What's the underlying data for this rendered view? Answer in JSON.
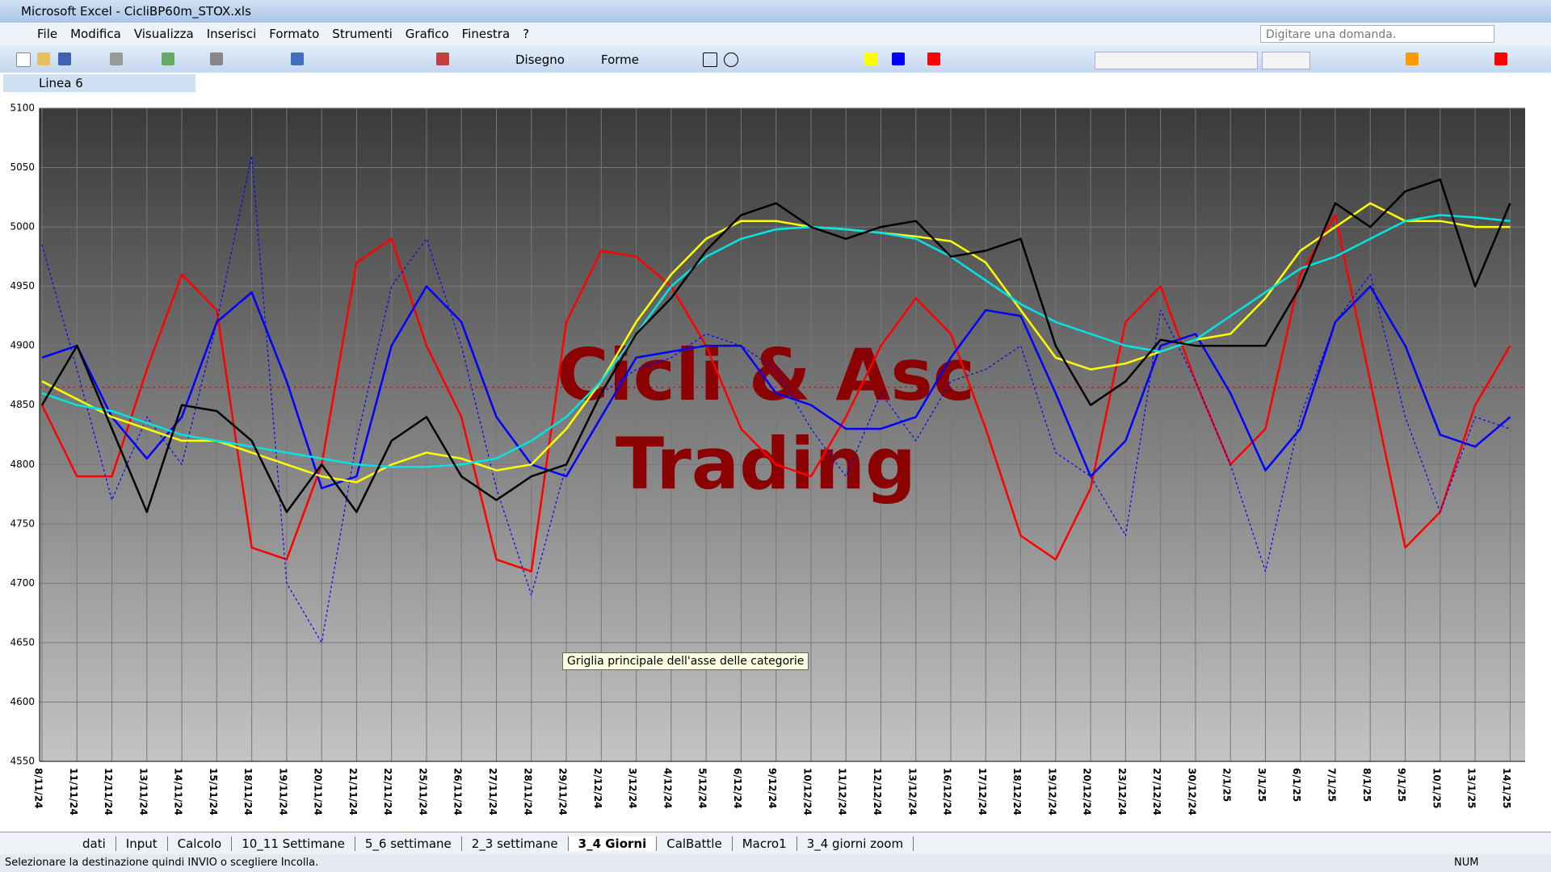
{
  "window": {
    "title": "Microsoft Excel - CicliBP60m_STOX.xls"
  },
  "menu": [
    "File",
    "Modifica",
    "Visualizza",
    "Inserisci",
    "Formato",
    "Strumenti",
    "Grafico",
    "Finestra",
    "?"
  ],
  "help_box": "Digitare una domanda.",
  "toolbar": {
    "drawing": "Disegno",
    "shapes": "Forme"
  },
  "name_box": "Linea 6",
  "tooltip": "Griglia principale dell'asse delle categorie",
  "sheet_tabs": [
    "dati",
    "Input",
    "Calcolo",
    "10_11 Settimane",
    "5_6 settimane",
    "2_3 settimane",
    "3_4 Giorni",
    "CalBattle",
    "Macro1",
    "3_4 giorni zoom"
  ],
  "active_tab": 6,
  "status_bar": {
    "message": "Selezionare la destinazione quindi INVIO o scegliere Incolla.",
    "num": "NUM"
  },
  "chart_data": {
    "type": "line",
    "annotations": [
      "Cicli & Asc",
      "Trading"
    ],
    "categories": [
      "8/11/24",
      "11/11/24",
      "12/11/24",
      "13/11/24",
      "14/11/24",
      "15/11/24",
      "18/11/24",
      "19/11/24",
      "20/11/24",
      "21/11/24",
      "22/11/24",
      "25/11/24",
      "26/11/24",
      "27/11/24",
      "28/11/24",
      "29/11/24",
      "2/12/24",
      "3/12/24",
      "4/12/24",
      "5/12/24",
      "6/12/24",
      "9/12/24",
      "10/12/24",
      "11/12/24",
      "12/12/24",
      "13/12/24",
      "16/12/24",
      "17/12/24",
      "18/12/24",
      "19/12/24",
      "20/12/24",
      "23/12/24",
      "27/12/24",
      "30/12/24",
      "2/1/25",
      "3/1/25",
      "6/1/25",
      "7/1/25",
      "8/1/25",
      "9/1/25",
      "10/1/25",
      "13/1/25",
      "14/1/25"
    ],
    "series": [
      {
        "color": "#ff0000",
        "values": [
          4850,
          4790,
          4790,
          4880,
          4960,
          4930,
          4730,
          4720,
          4800,
          4970,
          4990,
          4900,
          4840,
          4720,
          4710,
          4920,
          4980,
          4975,
          4950,
          4900,
          4830,
          4800,
          4790,
          4840,
          4900,
          4940,
          4910,
          4830,
          4740,
          4720,
          4780,
          4920,
          4950,
          4870,
          4800,
          4830,
          4960,
          5010,
          4870,
          4730,
          4760,
          4850,
          4900
        ]
      },
      {
        "color": "#0000ff",
        "dashed": true,
        "values": [
          4985,
          4880,
          4770,
          4840,
          4800,
          4920,
          5060,
          4700,
          4650,
          4820,
          4950,
          4990,
          4900,
          4780,
          4690,
          4800,
          4860,
          4880,
          4890,
          4910,
          4900,
          4880,
          4830,
          4790,
          4860,
          4820,
          4870,
          4880,
          4900,
          4810,
          4790,
          4740,
          4930,
          4870,
          4800,
          4710,
          4840,
          4920,
          4960,
          4840,
          4760,
          4840,
          4830
        ]
      },
      {
        "color": "#0000ff",
        "values": [
          4890,
          4900,
          4840,
          4805,
          4840,
          4920,
          4945,
          4870,
          4780,
          4790,
          4900,
          4950,
          4920,
          4840,
          4800,
          4790,
          4840,
          4890,
          4895,
          4900,
          4900,
          4860,
          4850,
          4830,
          4830,
          4840,
          4890,
          4930,
          4925,
          4860,
          4790,
          4820,
          4900,
          4910,
          4860,
          4795,
          4830,
          4920,
          4950,
          4900,
          4825,
          4815,
          4840
        ]
      },
      {
        "color": "#ffff00",
        "values": [
          4870,
          4855,
          4840,
          4830,
          4820,
          4820,
          4810,
          4800,
          4790,
          4785,
          4800,
          4810,
          4805,
          4795,
          4800,
          4830,
          4870,
          4920,
          4960,
          4990,
          5005,
          5005,
          5000,
          4998,
          4995,
          4992,
          4988,
          4970,
          4930,
          4890,
          4880,
          4885,
          4895,
          4905,
          4910,
          4940,
          4980,
          5000,
          5020,
          5005,
          5005,
          5000,
          5000
        ]
      },
      {
        "color": "#00e5e5",
        "values": [
          4860,
          4850,
          4845,
          4835,
          4825,
          4820,
          4815,
          4810,
          4805,
          4800,
          4798,
          4798,
          4800,
          4805,
          4820,
          4840,
          4870,
          4910,
          4950,
          4975,
          4990,
          4998,
          5000,
          4998,
          4995,
          4990,
          4975,
          4955,
          4935,
          4920,
          4910,
          4900,
          4895,
          4905,
          4925,
          4945,
          4965,
          4975,
          4990,
          5005,
          5010,
          5008,
          5005
        ]
      },
      {
        "color": "#000000",
        "values": [
          4850,
          4900,
          4830,
          4760,
          4850,
          4845,
          4820,
          4760,
          4800,
          4760,
          4820,
          4840,
          4790,
          4770,
          4790,
          4800,
          4860,
          4910,
          4940,
          4980,
          5010,
          5020,
          5000,
          4990,
          5000,
          5005,
          4975,
          4980,
          4990,
          4900,
          4850,
          4870,
          4905,
          4900,
          4900,
          4900,
          4950,
          5020,
          5000,
          5030,
          5040,
          4950,
          5020
        ]
      }
    ],
    "reference_line": {
      "value": 4865,
      "color": "#ff0000"
    },
    "ylim": [
      4550,
      5100
    ],
    "yticks": [
      4550,
      4600,
      4650,
      4700,
      4750,
      4800,
      4850,
      4900,
      4950,
      5000,
      5050,
      5100
    ],
    "grid": true
  }
}
